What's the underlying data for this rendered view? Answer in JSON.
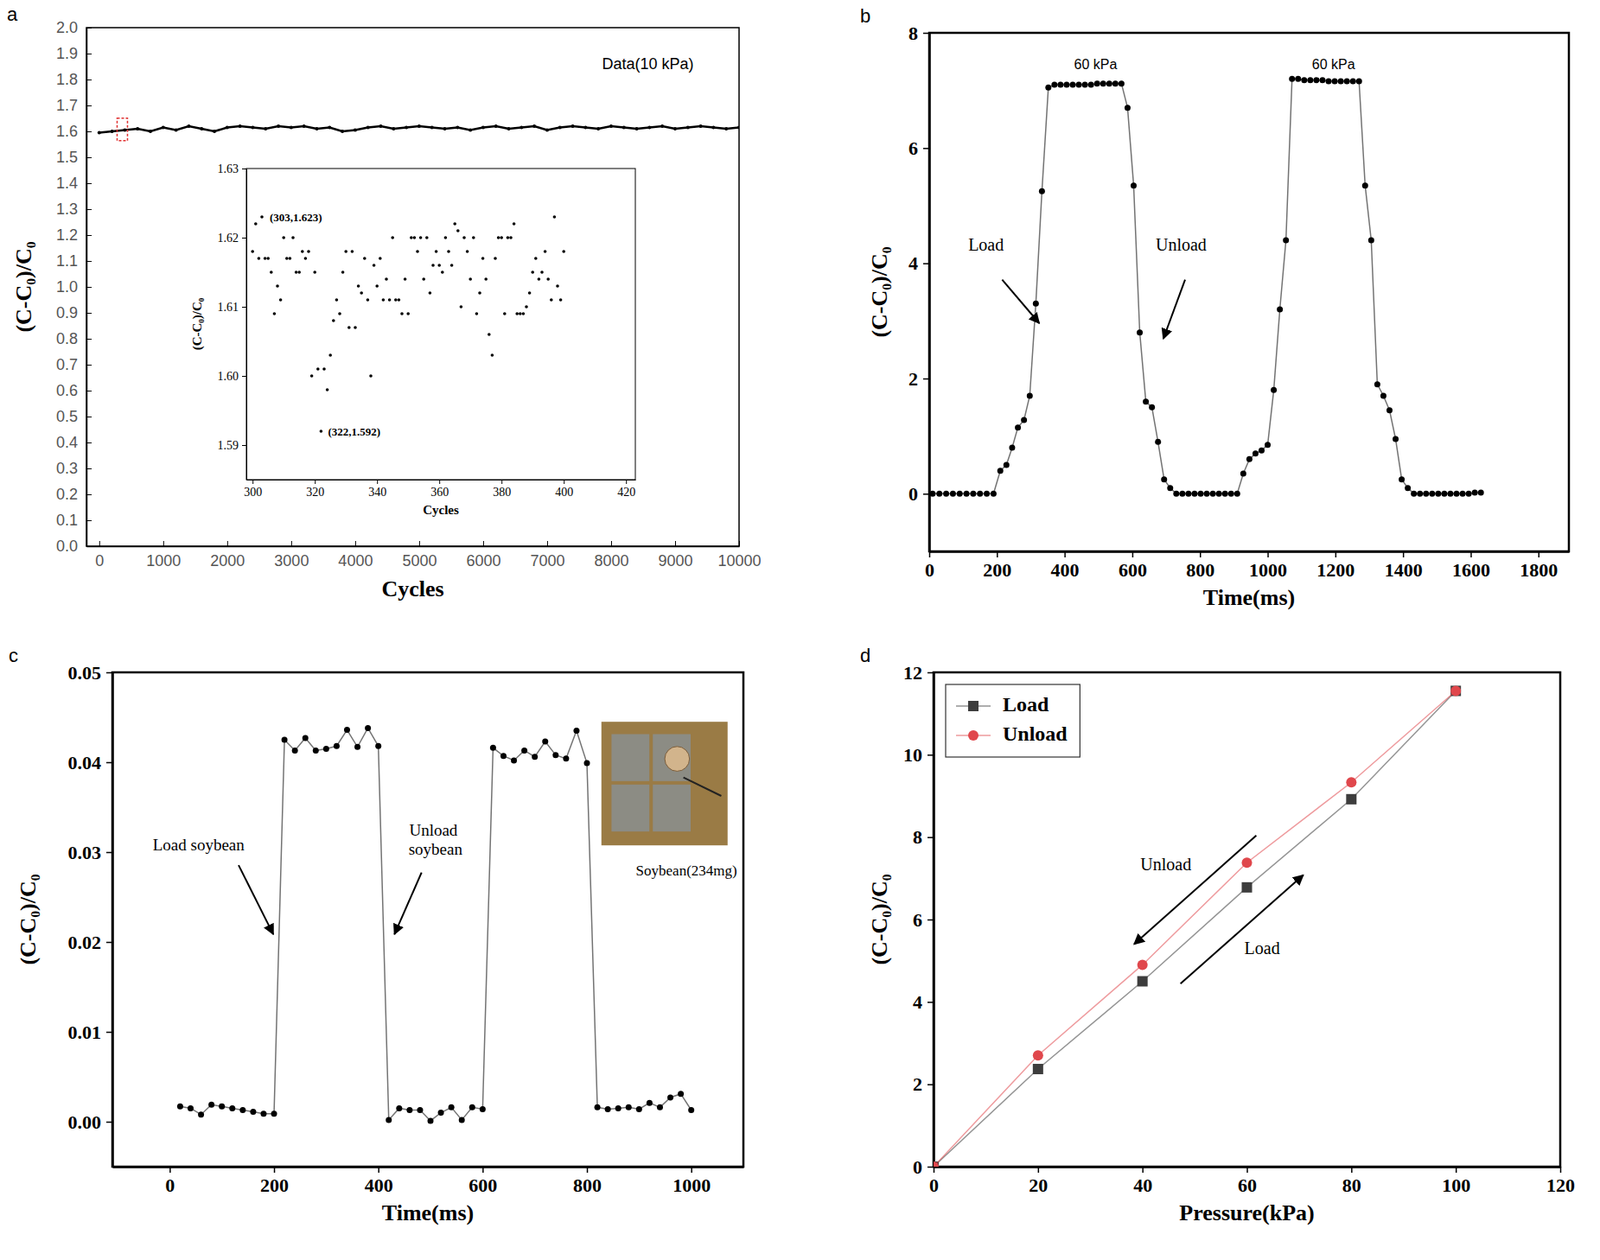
{
  "chart_data": [
    {
      "panel": "a",
      "type": "line",
      "x_label": "Cycles",
      "y_label": "(C-C₀)/C₀",
      "xlim": [
        -200,
        10000
      ],
      "ylim": [
        0,
        2
      ],
      "xticks": [
        0,
        1000,
        2000,
        3000,
        4000,
        5000,
        6000,
        7000,
        8000,
        9000,
        10000
      ],
      "yticks": [
        {
          "value": 0,
          "label": "0.0"
        },
        0.1,
        0.2,
        0.3,
        0.4,
        0.5,
        0.6,
        0.7,
        0.8,
        0.9,
        {
          "value": 1,
          "label": "1.0"
        },
        1.1,
        1.2,
        1.3,
        1.4,
        1.5,
        1.6,
        1.7,
        1.8,
        1.9,
        {
          "value": 2,
          "label": "2.0"
        }
      ],
      "x": [
        0,
        200,
        400,
        600,
        800,
        1000,
        1200,
        1400,
        1600,
        1800,
        2000,
        2200,
        2400,
        2600,
        2800,
        3000,
        3200,
        3400,
        3600,
        3800,
        4000,
        4200,
        4400,
        4600,
        4800,
        5000,
        5200,
        5400,
        5600,
        5800,
        6000,
        6200,
        6400,
        6600,
        6800,
        7000,
        7200,
        7400,
        7600,
        7800,
        8000,
        8200,
        8400,
        8600,
        8800,
        9000,
        9200,
        9400,
        9600,
        9800,
        10000
      ],
      "series": [
        {
          "color": "#000000",
          "marker": "circle",
          "line_style": "solid",
          "values": [
            1.595,
            1.6,
            1.605,
            1.61,
            1.6,
            1.615,
            1.605,
            1.62,
            1.61,
            1.6,
            1.615,
            1.62,
            1.615,
            1.61,
            1.62,
            1.615,
            1.62,
            1.61,
            1.615,
            1.6,
            1.605,
            1.615,
            1.62,
            1.61,
            1.615,
            1.62,
            1.615,
            1.61,
            1.615,
            1.605,
            1.615,
            1.62,
            1.61,
            1.615,
            1.62,
            1.605,
            1.615,
            1.62,
            1.615,
            1.61,
            1.62,
            1.615,
            1.61,
            1.615,
            1.62,
            1.61,
            1.615,
            1.62,
            1.615,
            1.61,
            1.615
          ]
        }
      ],
      "annotations": [
        "Data(10 kPa)"
      ],
      "inset": {
        "type": "scatter",
        "x_label": "Cycles",
        "y_label": "(C-C₀)/C₀",
        "xlim": [
          298,
          423
        ],
        "ylim": [
          1.585,
          1.63
        ],
        "xticks": [
          300,
          320,
          340,
          360,
          380,
          400,
          420
        ],
        "yticks": [
          1.59,
          {
            "value": 1.6,
            "label": "1.60"
          },
          1.61,
          1.62,
          1.63
        ],
        "x": [
          300,
          301,
          302,
          303,
          304,
          305,
          306,
          307,
          308,
          309,
          310,
          311,
          312,
          313,
          314,
          315,
          316,
          317,
          318,
          319,
          320,
          321,
          322,
          323,
          324,
          325,
          326,
          327,
          328,
          329,
          330,
          331,
          332,
          333,
          334,
          335,
          336,
          337,
          338,
          339,
          340,
          341,
          342,
          343,
          344,
          345,
          346,
          347,
          348,
          349,
          350,
          351,
          352,
          353,
          354,
          355,
          356,
          357,
          358,
          359,
          360,
          361,
          362,
          363,
          364,
          365,
          366,
          367,
          368,
          369,
          370,
          371,
          372,
          373,
          374,
          375,
          376,
          377,
          378,
          379,
          380,
          381,
          382,
          383,
          384,
          385,
          386,
          387,
          388,
          389,
          390,
          391,
          392,
          393,
          394,
          395,
          396,
          397,
          398,
          399,
          400
        ],
        "series": [
          {
            "color": "#000000",
            "marker": "circle",
            "values": [
              1.618,
              1.622,
              1.617,
              1.623,
              1.617,
              1.617,
              1.615,
              1.609,
              1.613,
              1.611,
              1.62,
              1.617,
              1.617,
              1.62,
              1.615,
              1.615,
              1.618,
              1.617,
              1.618,
              1.6,
              1.615,
              1.601,
              1.592,
              1.601,
              1.598,
              1.603,
              1.608,
              1.611,
              1.609,
              1.615,
              1.618,
              1.607,
              1.618,
              1.607,
              1.613,
              1.612,
              1.617,
              1.611,
              1.6,
              1.616,
              1.613,
              1.617,
              1.611,
              1.614,
              1.611,
              1.62,
              1.611,
              1.611,
              1.609,
              1.614,
              1.609,
              1.62,
              1.62,
              1.618,
              1.62,
              1.614,
              1.62,
              1.612,
              1.616,
              1.618,
              1.616,
              1.615,
              1.62,
              1.618,
              1.616,
              1.622,
              1.621,
              1.61,
              1.62,
              1.618,
              1.614,
              1.62,
              1.609,
              1.612,
              1.617,
              1.614,
              1.606,
              1.603,
              1.617,
              1.62,
              1.62,
              1.609,
              1.62,
              1.62,
              1.622,
              1.609,
              1.609,
              1.609,
              1.61,
              1.612,
              1.615,
              1.617,
              1.614,
              1.615,
              1.618,
              1.614,
              1.611,
              1.623,
              1.613,
              1.611,
              1.618
            ]
          }
        ],
        "annotations": [
          "(303,1.623)",
          "(322,1.592)"
        ]
      }
    },
    {
      "panel": "b",
      "type": "line",
      "x_label": "Time(ms)",
      "y_label": "(C-C₀)/C₀",
      "xlim": [
        0,
        1890
      ],
      "ylim": [
        -1,
        8
      ],
      "xticks": [
        0,
        200,
        400,
        600,
        800,
        1000,
        1200,
        1400,
        1600,
        1800
      ],
      "yticks": [
        0,
        2,
        4,
        6,
        8
      ],
      "x": [
        10,
        30,
        50,
        70,
        90,
        110,
        130,
        150,
        170,
        190,
        210,
        228,
        245,
        262,
        280,
        297,
        315,
        333,
        352,
        370,
        388,
        406,
        424,
        442,
        460,
        478,
        496,
        514,
        532,
        550,
        568,
        586,
        604,
        622,
        640,
        658,
        676,
        694,
        712,
        730,
        748,
        766,
        784,
        802,
        820,
        838,
        856,
        874,
        892,
        910,
        928,
        946,
        964,
        982,
        1000,
        1018,
        1036,
        1054,
        1072,
        1090,
        1108,
        1126,
        1144,
        1162,
        1180,
        1198,
        1216,
        1234,
        1252,
        1270,
        1288,
        1306,
        1324,
        1342,
        1360,
        1378,
        1396,
        1414,
        1432,
        1450,
        1468,
        1486,
        1504,
        1522,
        1540,
        1558,
        1576,
        1594,
        1612,
        1630
      ],
      "series": [
        {
          "color": "#000000",
          "marker": "circle",
          "line_style": "solid",
          "values": [
            0,
            0,
            0,
            0,
            0,
            0,
            0,
            0,
            0,
            0,
            0.4,
            0.5,
            0.8,
            1.15,
            1.28,
            1.7,
            3.3,
            5.25,
            7.05,
            7.1,
            7.1,
            7.1,
            7.1,
            7.1,
            7.1,
            7.1,
            7.12,
            7.12,
            7.12,
            7.12,
            7.12,
            6.7,
            5.35,
            2.8,
            1.6,
            1.5,
            0.9,
            0.25,
            0.1,
            0,
            0,
            0,
            0,
            0,
            0,
            0,
            0,
            0,
            0,
            0,
            0.35,
            0.6,
            0.7,
            0.75,
            0.85,
            1.8,
            3.2,
            4.4,
            7.2,
            7.2,
            7.18,
            7.18,
            7.18,
            7.18,
            7.16,
            7.16,
            7.16,
            7.16,
            7.16,
            7.16,
            5.35,
            4.4,
            1.9,
            1.7,
            1.45,
            0.95,
            0.25,
            0.1,
            0,
            0,
            0,
            0,
            0,
            0,
            0,
            0,
            0,
            0,
            0.02,
            0.02
          ]
        }
      ],
      "annotations": [
        "60 kPa",
        "60 kPa",
        "Load",
        "Unload"
      ]
    },
    {
      "panel": "c",
      "type": "line",
      "x_label": "Time(ms)",
      "y_label": "(C-C₀)/C₀",
      "xlim": [
        -110,
        1100
      ],
      "ylim": [
        -0.005,
        0.05
      ],
      "xticks": [
        0,
        200,
        400,
        600,
        800,
        1000
      ],
      "yticks": [
        {
          "value": 0,
          "label": "0.00"
        },
        0.01,
        0.02,
        0.03,
        0.04,
        0.05
      ],
      "x": [
        20,
        40,
        60,
        80,
        100,
        120,
        140,
        160,
        180,
        200,
        220,
        240,
        260,
        280,
        300,
        320,
        340,
        360,
        380,
        400,
        420,
        440,
        460,
        480,
        500,
        520,
        540,
        560,
        580,
        600,
        620,
        640,
        660,
        680,
        700,
        720,
        740,
        760,
        780,
        800,
        820,
        840,
        860,
        880,
        900,
        920,
        940,
        960,
        980,
        1000
      ],
      "series": [
        {
          "color": "#000000",
          "marker": "circle",
          "line_style": "solid",
          "values": [
            0.0017,
            0.0015,
            0.0008,
            0.0019,
            0.0017,
            0.0015,
            0.0013,
            0.0011,
            0.0009,
            0.0009,
            0.0425,
            0.0413,
            0.0427,
            0.0413,
            0.0415,
            0.0418,
            0.0436,
            0.0417,
            0.0438,
            0.0418,
            0.0002,
            0.0015,
            0.0013,
            0.0013,
            0.0001,
            0.001,
            0.0016,
            0.0002,
            0.0016,
            0.0014,
            0.0416,
            0.0407,
            0.0402,
            0.0413,
            0.0406,
            0.0423,
            0.0408,
            0.0404,
            0.0435,
            0.0399,
            0.0016,
            0.0014,
            0.0015,
            0.0016,
            0.0014,
            0.0021,
            0.0016,
            0.0027,
            0.0031,
            0.0013
          ]
        }
      ],
      "annotations": [
        "Load soybean",
        "Unload soybean",
        "Soybean(234mg)"
      ]
    },
    {
      "panel": "d",
      "type": "line",
      "x_label": "Pressure(kPa)",
      "y_label": "(C-C₀)/C₀",
      "xlim": [
        0,
        120
      ],
      "ylim": [
        0,
        12
      ],
      "xticks": [
        0,
        20,
        40,
        60,
        80,
        100,
        120
      ],
      "yticks": [
        0,
        2,
        4,
        6,
        8,
        10,
        12
      ],
      "x": [
        0,
        20,
        40,
        60,
        80,
        100
      ],
      "series": [
        {
          "name": "Load",
          "color": "#3d3d3d",
          "marker": "square",
          "line_style": "solid",
          "values": [
            0,
            2.37,
            4.5,
            6.78,
            8.92,
            11.55
          ]
        },
        {
          "name": "Unload",
          "color": "#e0474c",
          "marker": "circle",
          "line_style": "solid",
          "values": [
            0,
            2.7,
            4.9,
            7.38,
            9.33,
            11.55
          ]
        }
      ],
      "legend": "upper left",
      "annotations": [
        "Unload",
        "Load"
      ]
    }
  ]
}
